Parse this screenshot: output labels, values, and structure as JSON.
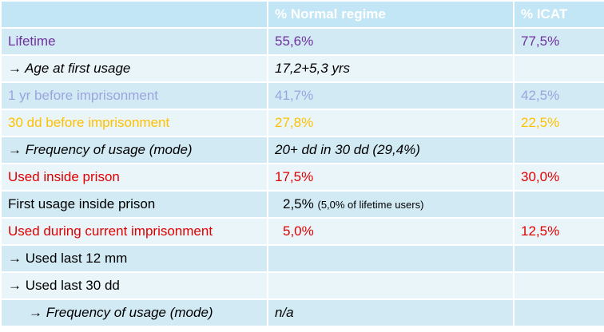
{
  "header": {
    "col0": "",
    "col1": "% Normal regime",
    "col2": "% ICAT"
  },
  "rows": [
    {
      "label": "Lifetime",
      "normal": "55,6%",
      "icat": "77,5%"
    },
    {
      "label": "→ Age at first usage",
      "normal": "17,2+5,3 yrs",
      "icat": ""
    },
    {
      "label": "1 yr before imprisonment",
      "normal": "41,7%",
      "icat": "42,5%"
    },
    {
      "label": "30 dd before imprisonment",
      "normal": "27,8%",
      "icat": "22,5%"
    },
    {
      "label": "→ Frequency of usage (mode)",
      "normal": "20+ dd in 30 dd (29,4%)",
      "icat": ""
    },
    {
      "label": "Used inside prison",
      "normal": "17,5%",
      "icat": "30,0%"
    },
    {
      "label": "First usage inside prison",
      "normal": "2,5%",
      "normal_note": "(5,0% of lifetime users)",
      "icat": ""
    },
    {
      "label": "Used during current imprisonment",
      "normal": "5,0%",
      "icat": "12,5%"
    },
    {
      "label": "→ Used last 12 mm",
      "normal": "",
      "icat": ""
    },
    {
      "label": "→ Used last 30 dd",
      "normal": "",
      "icat": ""
    },
    {
      "label": "→ Frequency of usage (mode)",
      "normal": "n/a",
      "icat": ""
    }
  ]
}
